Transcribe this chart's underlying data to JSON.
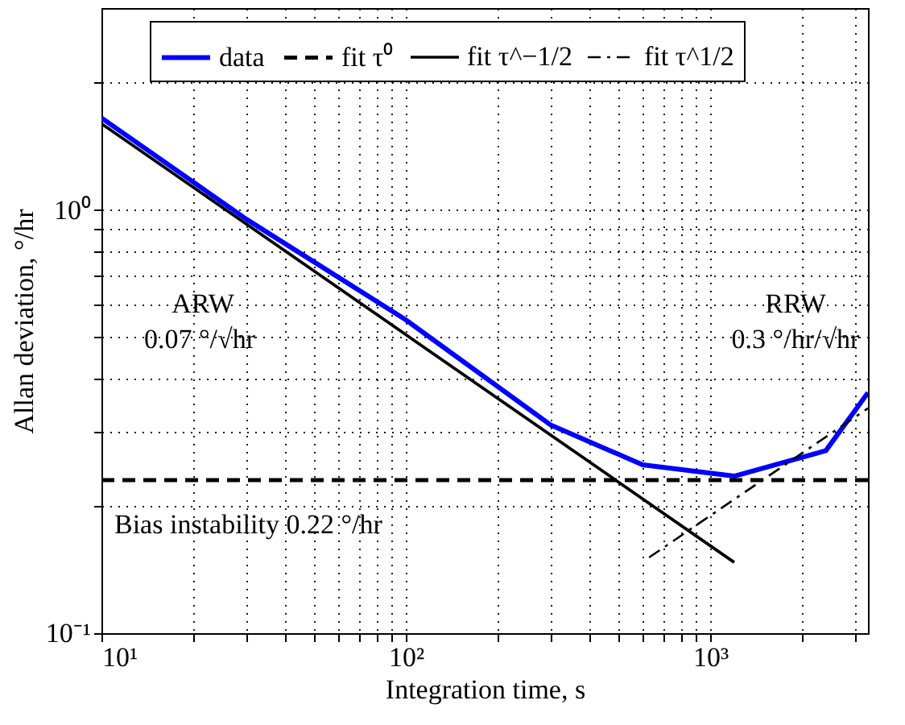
{
  "chart_data": {
    "type": "line",
    "xlabel": "Integration time, s",
    "ylabel": "Allan deviation, °/hr",
    "log": "xy",
    "grid": true,
    "legend": "top",
    "xlim": [
      10,
      3300
    ],
    "ylim": [
      0.1,
      3
    ],
    "xticks": [
      {
        "value": 10,
        "label": "10¹"
      },
      {
        "value": 20,
        "label": null
      },
      {
        "value": 30,
        "label": null
      },
      {
        "value": 40,
        "label": null
      },
      {
        "value": 50,
        "label": null
      },
      {
        "value": 60,
        "label": null
      },
      {
        "value": 70,
        "label": null
      },
      {
        "value": 80,
        "label": null
      },
      {
        "value": 90,
        "label": null
      },
      {
        "value": 100,
        "label": "10²"
      },
      {
        "value": 200,
        "label": null
      },
      {
        "value": 300,
        "label": null
      },
      {
        "value": 400,
        "label": null
      },
      {
        "value": 500,
        "label": null
      },
      {
        "value": 600,
        "label": null
      },
      {
        "value": 700,
        "label": null
      },
      {
        "value": 800,
        "label": null
      },
      {
        "value": 900,
        "label": null
      },
      {
        "value": 1000,
        "label": "10³"
      },
      {
        "value": 2000,
        "label": null
      },
      {
        "value": 3000,
        "label": null
      }
    ],
    "yticks": [
      {
        "value": 0.1,
        "label": "10⁻¹"
      },
      {
        "value": 0.2,
        "label": null
      },
      {
        "value": 0.3,
        "label": null
      },
      {
        "value": 0.4,
        "label": null
      },
      {
        "value": 0.5,
        "label": null
      },
      {
        "value": 0.6,
        "label": null
      },
      {
        "value": 0.7,
        "label": null
      },
      {
        "value": 0.8,
        "label": null
      },
      {
        "value": 0.9,
        "label": null
      },
      {
        "value": 1,
        "label": "10⁰"
      },
      {
        "value": 2,
        "label": null
      }
    ],
    "series": [
      {
        "name": "data",
        "color": "#0000ff",
        "line_style": "solid",
        "x": [
          10,
          30,
          100,
          300,
          600,
          1200,
          2400,
          3300
        ],
        "values": [
          1.65,
          0.95,
          0.55,
          0.31,
          0.25,
          0.235,
          0.27,
          0.37
        ]
      },
      {
        "name": "fit τ⁰",
        "color": "#000000",
        "line_style": "dashed",
        "x": [
          10,
          3300
        ],
        "values": [
          0.23,
          0.23
        ]
      },
      {
        "name": "fit τ^−1/2",
        "color": "#000000",
        "line_style": "solid",
        "x": [
          10,
          1200
        ],
        "values": [
          1.6,
          0.147
        ]
      },
      {
        "name": "fit τ^1/2",
        "color": "#000000",
        "line_style": "dashdot",
        "x": [
          630,
          3300
        ],
        "values": [
          0.151,
          0.34
        ]
      }
    ],
    "annotations": [
      "ARW",
      "0.07 °/√hr",
      "RRW",
      "0.3 °/hr/√hr",
      "Bias instability 0.22 °/hr"
    ]
  }
}
